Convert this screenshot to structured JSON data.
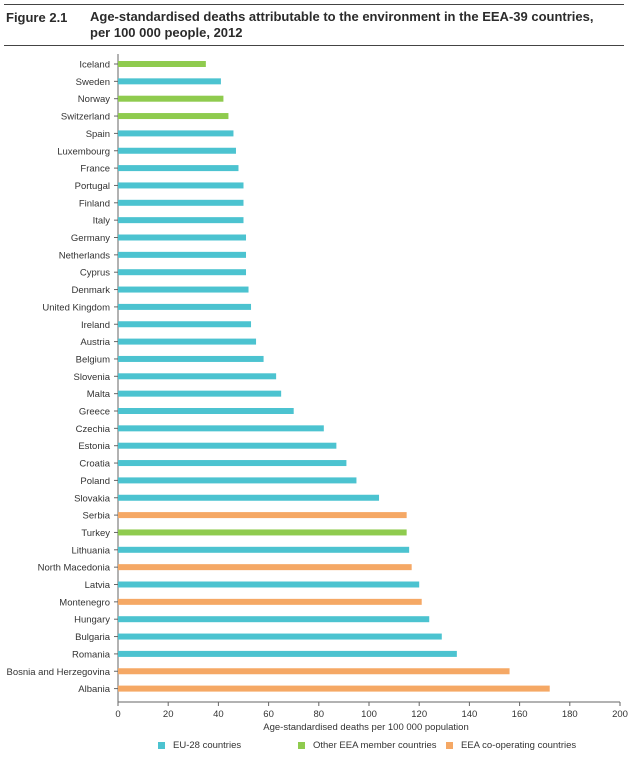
{
  "figure": {
    "label": "Figure 2.1",
    "title": "Age-standardised deaths attributable to the environment in the EEA-39 countries, per 100 000 people, 2012"
  },
  "colors": {
    "EU-28 countries": "#4cc3d0",
    "Other EEA member countries": "#8fcb4e",
    "EEA co-operating countries": "#f5a865"
  },
  "legend": [
    {
      "label": "EU-28 countries",
      "color": "#4cc3d0"
    },
    {
      "label": "Other EEA member countries",
      "color": "#8fcb4e"
    },
    {
      "label": "EEA co-operating countries",
      "color": "#f5a865"
    }
  ],
  "chart_data": {
    "type": "bar",
    "orientation": "horizontal",
    "title": "Age-standardised deaths attributable to the environment in the EEA-39 countries, per 100 000 people, 2012",
    "xlabel": "Age-standardised deaths per 100 000 population",
    "ylabel": "",
    "xlim": [
      0,
      200
    ],
    "xticks": [
      0,
      20,
      40,
      60,
      80,
      100,
      120,
      140,
      160,
      180,
      200
    ],
    "grid": false,
    "legend_position": "bottom",
    "categories": [
      "Iceland",
      "Sweden",
      "Norway",
      "Switzerland",
      "Spain",
      "Luxembourg",
      "France",
      "Portugal",
      "Finland",
      "Italy",
      "Germany",
      "Netherlands",
      "Cyprus",
      "Denmark",
      "United Kingdom",
      "Ireland",
      "Austria",
      "Belgium",
      "Slovenia",
      "Malta",
      "Greece",
      "Czechia",
      "Estonia",
      "Croatia",
      "Poland",
      "Slovakia",
      "Serbia",
      "Turkey",
      "Lithuania",
      "North Macedonia",
      "Latvia",
      "Montenegro",
      "Hungary",
      "Bulgaria",
      "Romania",
      "Bosnia and Herzegovina",
      "Albania"
    ],
    "values": [
      35,
      41,
      42,
      44,
      46,
      47,
      48,
      50,
      50,
      50,
      51,
      51,
      51,
      52,
      53,
      53,
      55,
      58,
      63,
      65,
      70,
      82,
      87,
      91,
      95,
      104,
      115,
      115,
      116,
      117,
      120,
      121,
      124,
      129,
      135,
      156,
      172
    ],
    "groups": [
      "Other EEA member countries",
      "EU-28 countries",
      "Other EEA member countries",
      "Other EEA member countries",
      "EU-28 countries",
      "EU-28 countries",
      "EU-28 countries",
      "EU-28 countries",
      "EU-28 countries",
      "EU-28 countries",
      "EU-28 countries",
      "EU-28 countries",
      "EU-28 countries",
      "EU-28 countries",
      "EU-28 countries",
      "EU-28 countries",
      "EU-28 countries",
      "EU-28 countries",
      "EU-28 countries",
      "EU-28 countries",
      "EU-28 countries",
      "EU-28 countries",
      "EU-28 countries",
      "EU-28 countries",
      "EU-28 countries",
      "EU-28 countries",
      "EEA co-operating countries",
      "Other EEA member countries",
      "EU-28 countries",
      "EEA co-operating countries",
      "EU-28 countries",
      "EEA co-operating countries",
      "EU-28 countries",
      "EU-28 countries",
      "EU-28 countries",
      "EEA co-operating countries",
      "EEA co-operating countries"
    ]
  }
}
